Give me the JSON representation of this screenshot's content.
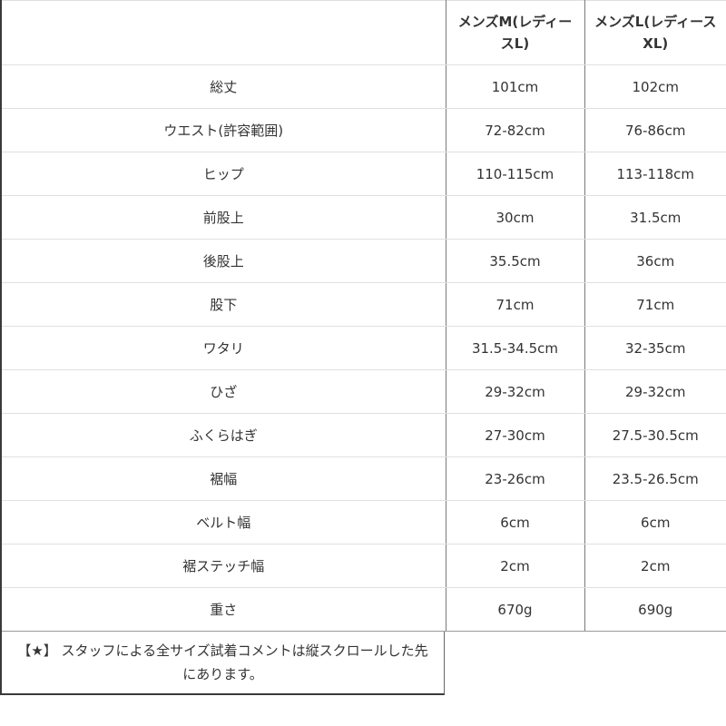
{
  "chart_data": {
    "type": "table",
    "title": "",
    "columns": [
      "",
      "メンズM(レディースL)",
      "メンズL(レディースXL)"
    ],
    "rows": [
      [
        "総丈",
        "101cm",
        "102cm"
      ],
      [
        "ウエスト(許容範囲)",
        "72-82cm",
        "76-86cm"
      ],
      [
        "ヒップ",
        "110-115cm",
        "113-118cm"
      ],
      [
        "前股上",
        "30cm",
        "31.5cm"
      ],
      [
        "後股上",
        "35.5cm",
        "36cm"
      ],
      [
        "股下",
        "71cm",
        "71cm"
      ],
      [
        "ワタリ",
        "31.5-34.5cm",
        "32-35cm"
      ],
      [
        "ひざ",
        "29-32cm",
        "29-32cm"
      ],
      [
        "ふくらはぎ",
        "27-30cm",
        "27.5-30.5cm"
      ],
      [
        "裾幅",
        "23-26cm",
        "23.5-26.5cm"
      ],
      [
        "ベルト幅",
        "6cm",
        "6cm"
      ],
      [
        "裾ステッチ幅",
        "2cm",
        "2cm"
      ],
      [
        "重さ",
        "670g",
        "690g"
      ]
    ],
    "footnote": "【★】 スタッフによる全サイズ試着コメントは縦スクロールした先にあります。",
    "layout": {
      "grid": "bordered-table",
      "legend_position": "none"
    }
  },
  "colors": {
    "text": "#333333",
    "border_outer_dark": "#3a3a3a",
    "border_column": "#7a7a7a",
    "border_row_light": "#e0e0e0",
    "border_table_bottom": "#999999",
    "background": "#ffffff"
  }
}
